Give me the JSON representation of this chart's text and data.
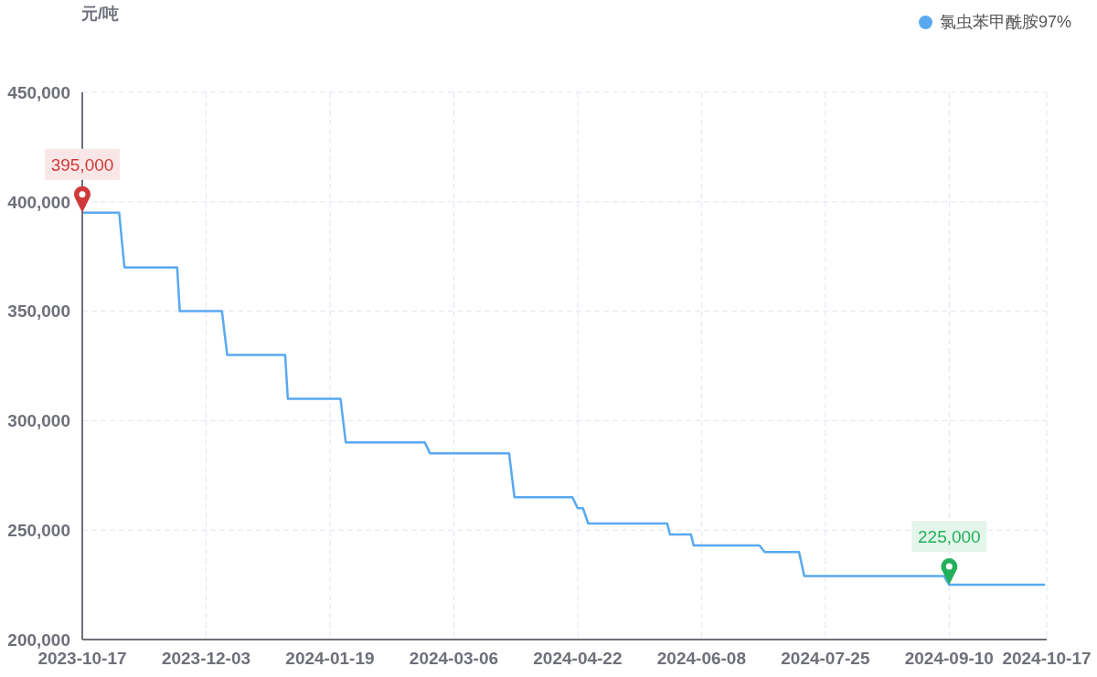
{
  "chart_data": {
    "type": "line",
    "ylabel": "元/吨",
    "x": [
      "2023-10-17",
      "2023-10-31",
      "2023-11-02",
      "2023-11-22",
      "2023-11-23",
      "2023-12-09",
      "2023-12-11",
      "2024-01-02",
      "2024-01-03",
      "2024-01-23",
      "2024-01-25",
      "2024-02-24",
      "2024-02-26",
      "2024-03-27",
      "2024-03-29",
      "2024-04-20",
      "2024-04-22",
      "2024-04-24",
      "2024-04-26",
      "2024-05-26",
      "2024-05-27",
      "2024-06-04",
      "2024-06-05",
      "2024-06-30",
      "2024-07-02",
      "2024-07-15",
      "2024-07-17",
      "2024-09-08",
      "2024-09-10",
      "2024-10-16"
    ],
    "series": [
      {
        "name": "氯虫苯甲酰胺97%",
        "color": "#58a9f0",
        "values": [
          395000,
          395000,
          370000,
          370000,
          350000,
          350000,
          330000,
          330000,
          310000,
          310000,
          290000,
          290000,
          285000,
          285000,
          265000,
          265000,
          260000,
          260000,
          253000,
          253000,
          248000,
          248000,
          243000,
          243000,
          240000,
          240000,
          229000,
          229000,
          225000,
          225000
        ]
      }
    ],
    "xlim": [
      "2023-10-17",
      "2024-10-17"
    ],
    "xticks": [
      "2023-10-17",
      "2023-12-03",
      "2024-01-19",
      "2024-03-06",
      "2024-04-22",
      "2024-06-08",
      "2024-07-25",
      "2024-09-10",
      "2024-10-17"
    ],
    "ylim": [
      200000,
      450000
    ],
    "yticks": [
      {
        "value": 200000,
        "label": "200,000"
      },
      {
        "value": 250000,
        "label": "250,000"
      },
      {
        "value": 300000,
        "label": "300,000"
      },
      {
        "value": 350000,
        "label": "350,000"
      },
      {
        "value": 400000,
        "label": "400,000"
      },
      {
        "value": 450000,
        "label": "450,000"
      }
    ],
    "grid": true,
    "legend": "top right",
    "marker": "none",
    "line_style": "solid",
    "annotations": [
      {
        "text": "395,000",
        "x": "2023-10-17",
        "y": 395000
      },
      {
        "text": "225,000",
        "x": "2024-09-10",
        "y": 225000
      }
    ]
  }
}
